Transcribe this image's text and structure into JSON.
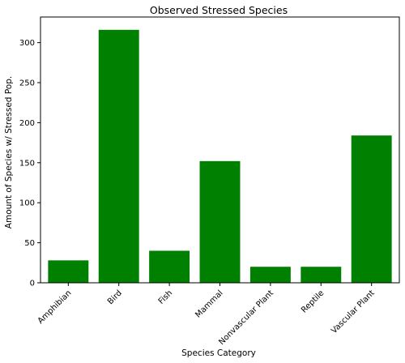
{
  "chart_data": {
    "type": "bar",
    "title": "Observed Stressed Species",
    "xlabel": "Species Category",
    "ylabel": "Amount of Species w/ Stressed Pop.",
    "categories": [
      "Amphibian",
      "Bird",
      "Fish",
      "Mammal",
      "Nonvascular Plant",
      "Reptile",
      "Vascular Plant"
    ],
    "values": [
      28,
      316,
      40,
      152,
      20,
      20,
      184
    ],
    "yticks": [
      0,
      50,
      100,
      150,
      200,
      250,
      300
    ],
    "ylim": [
      0,
      332
    ],
    "bar_color": "#008000",
    "grid": false,
    "legend": "none"
  }
}
